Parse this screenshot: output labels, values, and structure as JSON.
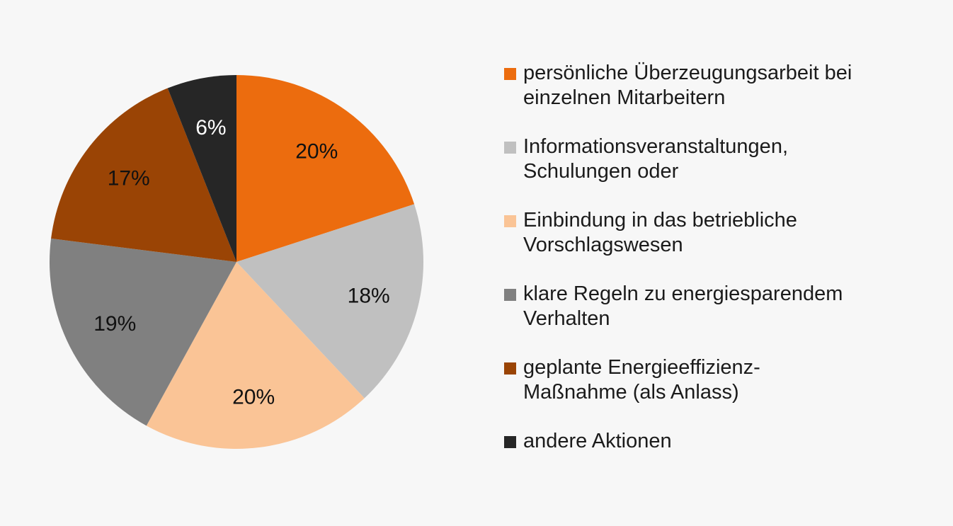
{
  "chart_data": {
    "type": "pie",
    "title": "",
    "legend_position": "right",
    "start_angle_deg": 0,
    "direction": "clockwise",
    "slices": [
      {
        "label": "persönliche Überzeugungsarbeit bei\neinzelnen Mitarbeitern",
        "value": 20,
        "display": "20%",
        "color": "#ec6c0e",
        "label_color": "#111111"
      },
      {
        "label": "Informationsveranstaltungen,\nSchulungen oder",
        "value": 18,
        "display": "18%",
        "color": "#c0c0c0",
        "label_color": "#111111"
      },
      {
        "label": "Einbindung in das betriebliche\nVorschlagswesen",
        "value": 20,
        "display": "20%",
        "color": "#fac496",
        "label_color": "#111111"
      },
      {
        "label": "klare Regeln zu energiesparendem\nVerhalten",
        "value": 19,
        "display": "19%",
        "color": "#808080",
        "label_color": "#111111"
      },
      {
        "label": "geplante Energieeffizienz-\nMaßnahme (als Anlass)",
        "value": 17,
        "display": "17%",
        "color": "#9a4405",
        "label_color": "#111111"
      },
      {
        "label": "andere Aktionen",
        "value": 6,
        "display": "6%",
        "color": "#262626",
        "label_color": "#ffffff"
      }
    ]
  }
}
